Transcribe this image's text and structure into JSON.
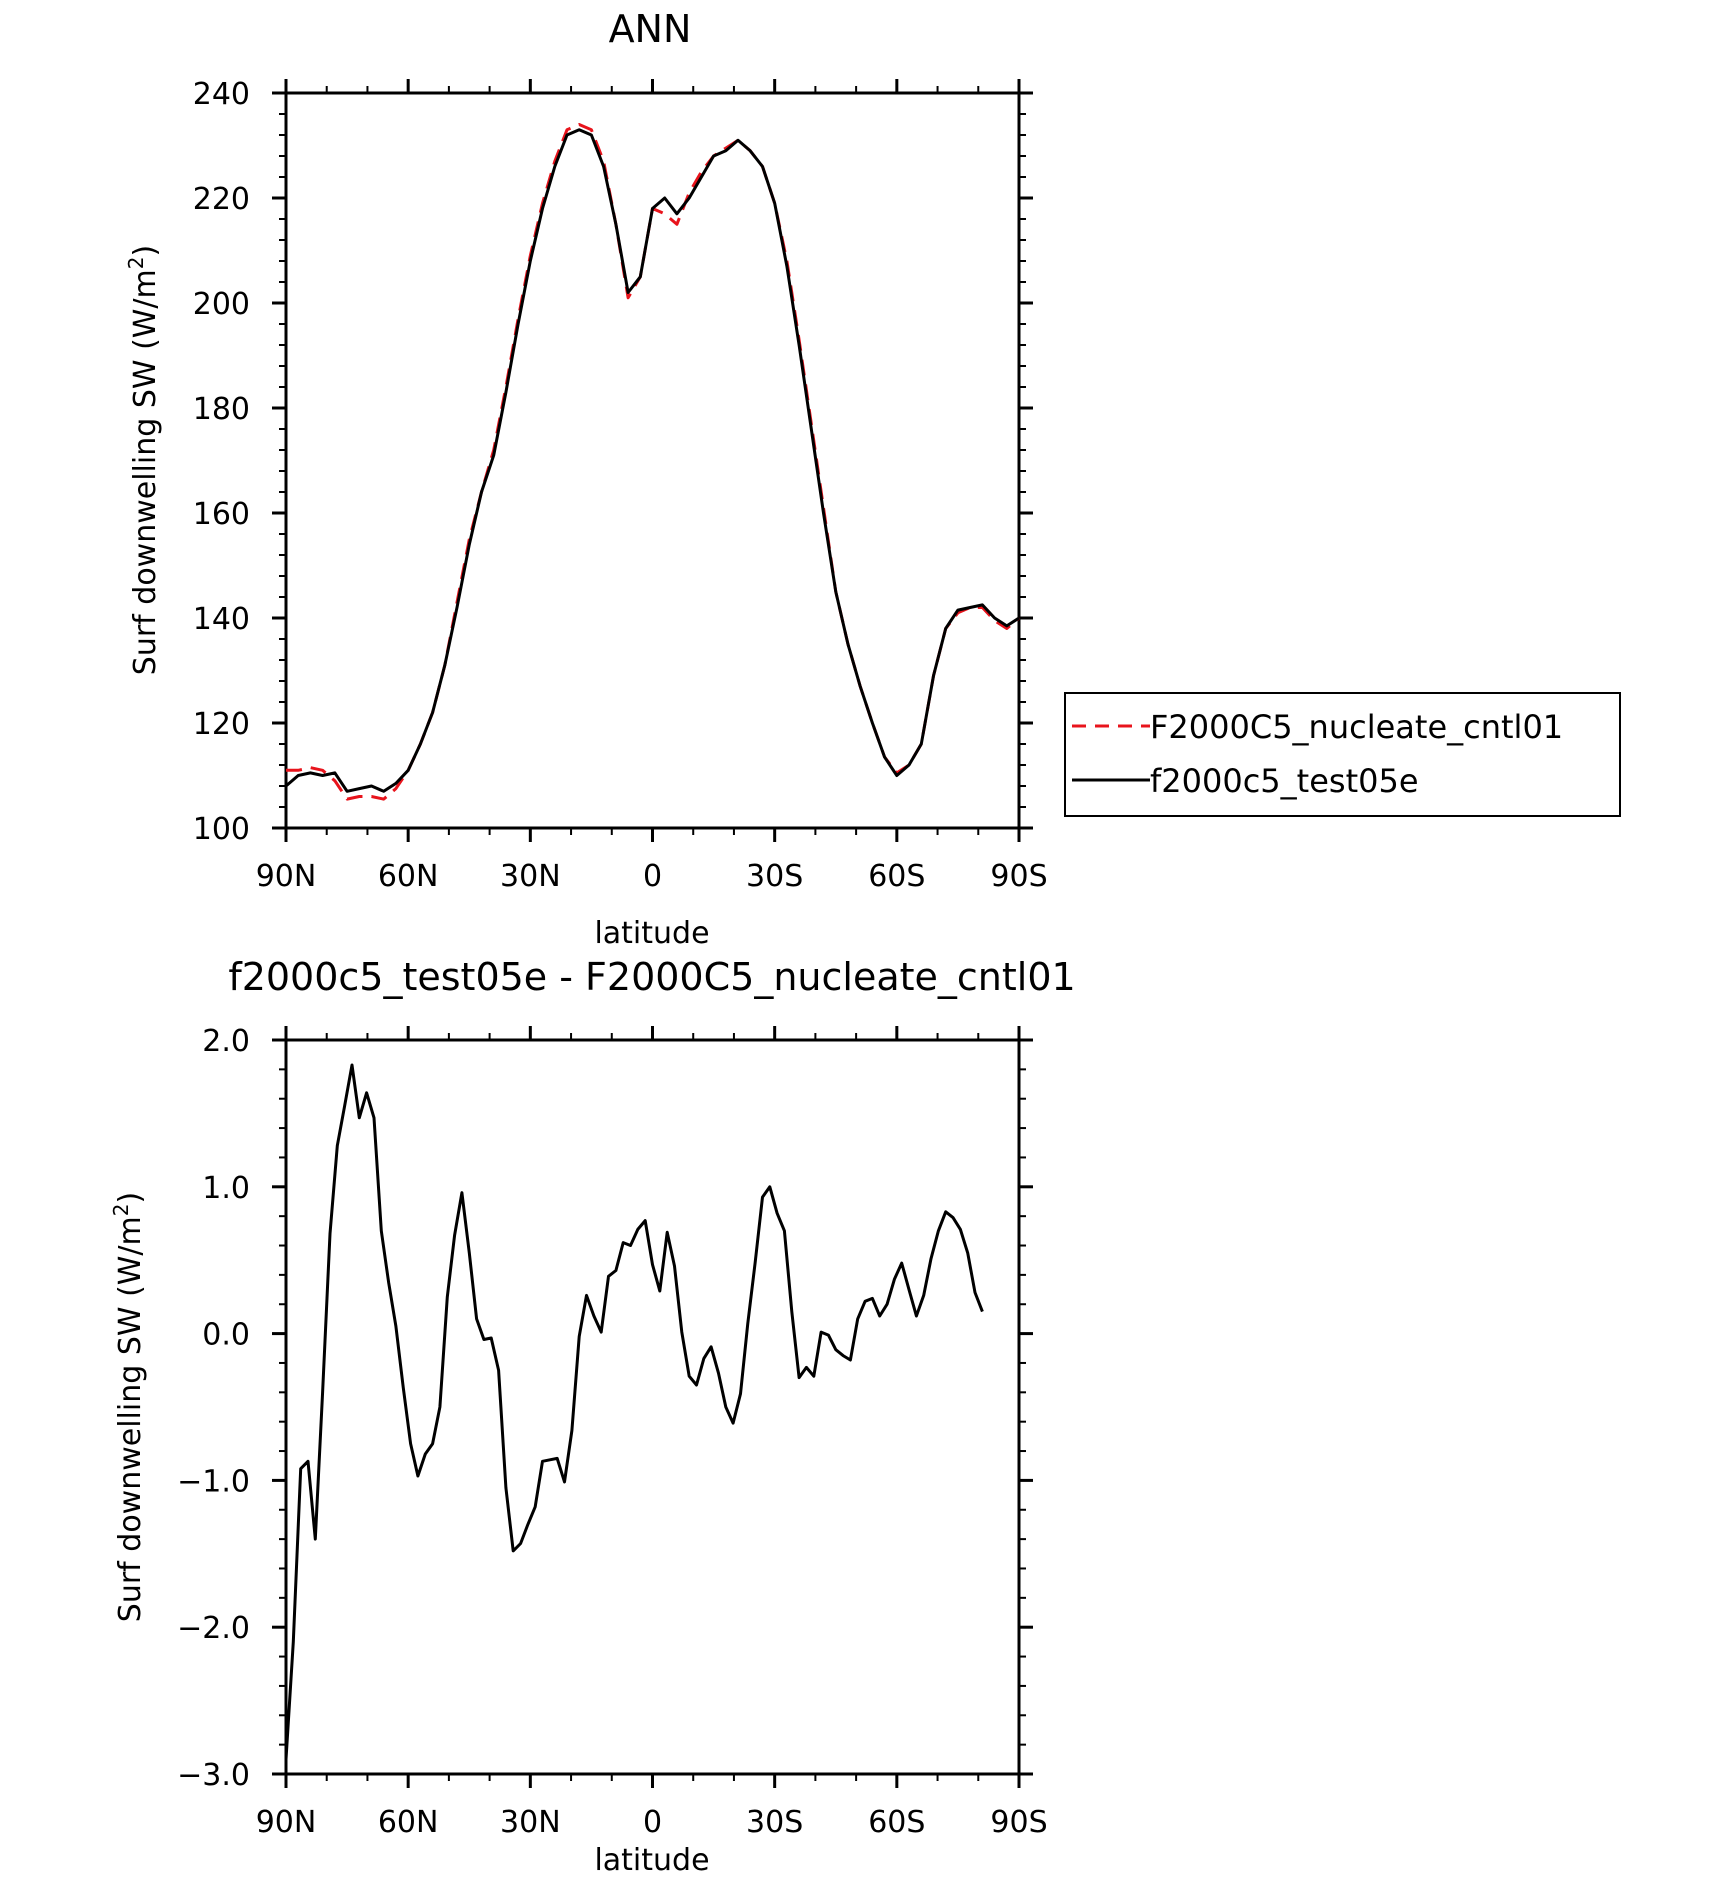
{
  "chart_data": [
    {
      "type": "line",
      "title": "ANN",
      "xlabel": "latitude",
      "ylabel": "Surf  downwelling SW  (W/m",
      "ylabel_sup": "2",
      "ylabel_close": ")",
      "xlim": [
        -90,
        90
      ],
      "ylim": [
        100,
        240
      ],
      "x_ticks": [
        -90,
        -60,
        -30,
        0,
        30,
        60,
        90
      ],
      "x_tick_labels": [
        "90N",
        "60N",
        "30N",
        "0",
        "30S",
        "60S",
        "90S"
      ],
      "y_ticks": [
        100,
        120,
        140,
        160,
        180,
        200,
        220,
        240
      ],
      "y_tick_labels": [
        "100",
        "120",
        "140",
        "160",
        "180",
        "200",
        "220",
        "240"
      ],
      "grid": false,
      "legend_position": "right",
      "series": [
        {
          "name": "F2000C5_nucleate_cntl01",
          "color": "#e8141c",
          "dash": "dashed",
          "x": [
            -90,
            -87,
            -84,
            -81,
            -78,
            -75,
            -72,
            -69,
            -66,
            -63,
            -60,
            -57,
            -54,
            -51,
            -48,
            -45,
            -42,
            -39,
            -36,
            -33,
            -30,
            -27,
            -24,
            -21,
            -18,
            -15,
            -12,
            -9,
            -6,
            -3,
            0,
            3,
            6,
            9,
            12,
            15,
            18,
            21,
            24,
            27,
            30,
            33,
            36,
            39,
            42,
            45,
            48,
            51,
            54,
            57,
            60,
            63,
            66,
            69,
            72,
            75,
            78,
            81,
            84,
            87,
            90
          ],
          "y": [
            111,
            111,
            111.5,
            111,
            109,
            105.5,
            106,
            106,
            105.5,
            107.5,
            111,
            116,
            122,
            131,
            143,
            155,
            164,
            172,
            184,
            197,
            209,
            219,
            227,
            233,
            234,
            233,
            227,
            215,
            201,
            205,
            218,
            217,
            215,
            221,
            225,
            228,
            229.5,
            231,
            229,
            226,
            219,
            208,
            193,
            177,
            161,
            145,
            135,
            127,
            120,
            113.5,
            110.5,
            112,
            116,
            129,
            138,
            141,
            142,
            142,
            139.5,
            138,
            140
          ]
        },
        {
          "name": "f2000c5_test05e",
          "color": "#000000",
          "dash": "solid",
          "x": [
            -90,
            -87,
            -84,
            -81,
            -78,
            -75,
            -72,
            -69,
            -66,
            -63,
            -60,
            -57,
            -54,
            -51,
            -48,
            -45,
            -42,
            -39,
            -36,
            -33,
            -30,
            -27,
            -24,
            -21,
            -18,
            -15,
            -12,
            -9,
            -6,
            -3,
            0,
            3,
            6,
            9,
            12,
            15,
            18,
            21,
            24,
            27,
            30,
            33,
            36,
            39,
            42,
            45,
            48,
            51,
            54,
            57,
            60,
            63,
            66,
            69,
            72,
            75,
            78,
            81,
            84,
            87,
            90
          ],
          "y": [
            108,
            110,
            110.5,
            110,
            110.5,
            107,
            107.5,
            108,
            107,
            108.5,
            111,
            116,
            122,
            131,
            142,
            154,
            164,
            171,
            183,
            196,
            208,
            218,
            226,
            232,
            233,
            232,
            226,
            215,
            202,
            205,
            218,
            220,
            217,
            220,
            224,
            228,
            229,
            231,
            229,
            226,
            219,
            207,
            192,
            176,
            160,
            145,
            135,
            127,
            120,
            113.5,
            110,
            112,
            116,
            129,
            138,
            141.5,
            142,
            142.5,
            140,
            138.5,
            140
          ]
        }
      ]
    },
    {
      "type": "line",
      "title": "f2000c5_test05e - F2000C5_nucleate_cntl01",
      "xlabel": "latitude",
      "ylabel": "Surf  downwelling SW  (W/m",
      "ylabel_sup": "2",
      "ylabel_close": ")",
      "xlim": [
        -90,
        90
      ],
      "ylim": [
        -3,
        2
      ],
      "x_ticks": [
        -90,
        -60,
        -30,
        0,
        30,
        60,
        90
      ],
      "x_tick_labels": [
        "90N",
        "60N",
        "30N",
        "0",
        "30S",
        "60S",
        "90S"
      ],
      "y_ticks": [
        -3,
        -2,
        -1,
        0,
        1,
        2
      ],
      "y_tick_labels": [
        "−3.0",
        "−2.0",
        "−1.0",
        "0.0",
        "1.0",
        "2.0"
      ],
      "grid": false,
      "series": [
        {
          "color": "#000000",
          "dash": "solid",
          "x": [
            -90,
            -88.2,
            -86.4,
            -84.6,
            -82.8,
            -81,
            -79.2,
            -77.4,
            -75.6,
            -73.8,
            -72,
            -70.2,
            -68.4,
            -66.6,
            -64.8,
            -63,
            -61.2,
            -59.4,
            -57.6,
            -55.8,
            -54,
            -52.2,
            -50.4,
            -48.6,
            -46.8,
            -45,
            -43.2,
            -41.4,
            -39.6,
            -37.8,
            -36,
            -34.2,
            -32.4,
            -30.6,
            -28.8,
            -27,
            -25.2,
            -23.4,
            -21.6,
            -19.8,
            -18,
            -16.2,
            -14.4,
            -12.6,
            -10.8,
            -9,
            -7.2,
            -5.4,
            -3.6,
            -1.8,
            0,
            1.8,
            3.6,
            5.4,
            7.2,
            9,
            10.8,
            12.6,
            14.4,
            16.2,
            18,
            19.8,
            21.6,
            23.4,
            25.2,
            27,
            28.8,
            30.6,
            32.4,
            34.2,
            36,
            37.8,
            39.6,
            41.4,
            43.2,
            45,
            46.8,
            48.6,
            50.4,
            52.2,
            54,
            55.8,
            57.6,
            59.4,
            61.2,
            63,
            64.8,
            66.6,
            68.4,
            70.2,
            72,
            73.8,
            75.6,
            77.4,
            79.2,
            81,
            82.8,
            84.6,
            86.4,
            88.2,
            90
          ],
          "y": [
            -2.9,
            -2.1,
            -0.92,
            -0.87,
            -1.4,
            -0.4,
            0.68,
            1.28,
            1.55,
            1.83,
            1.47,
            1.64,
            1.47,
            0.7,
            0.35,
            0.05,
            -0.37,
            -0.75,
            -0.97,
            -0.82,
            -0.75,
            -0.5,
            0.25,
            0.67,
            0.96,
            0.55,
            0.1,
            -0.04,
            -0.03,
            -0.25,
            -1.05,
            -1.48,
            -1.43,
            -1.3,
            -1.18,
            -0.87,
            -0.86,
            -0.85,
            -1.01,
            -0.66,
            -0.02,
            0.26,
            0.12,
            0.01,
            0.39,
            0.43,
            0.62,
            0.6,
            0.71,
            0.77,
            0.47,
            0.29,
            0.69,
            0.46,
            0.01,
            -0.29,
            -0.35,
            -0.17,
            -0.09,
            -0.27,
            -0.5,
            -0.61,
            -0.41,
            0.07,
            0.48,
            0.93,
            1.0,
            0.82,
            0.7,
            0.15,
            -0.3,
            -0.23,
            -0.29,
            0.01,
            -0.01,
            -0.11,
            -0.15,
            -0.18,
            0.1,
            0.22,
            0.24,
            0.12,
            0.2,
            0.37,
            0.48,
            0.3,
            0.12,
            0.26,
            0.51,
            0.7,
            0.83,
            0.79,
            0.71,
            0.55,
            0.28,
            0.15,
            null,
            null,
            null,
            null,
            null
          ]
        }
      ]
    }
  ]
}
